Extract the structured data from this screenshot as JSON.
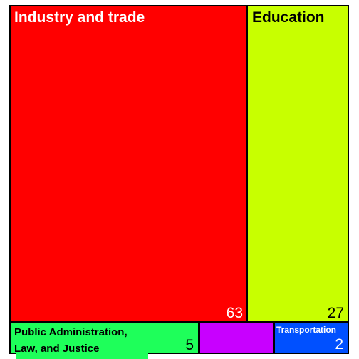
{
  "chart_data": {
    "type": "treemap",
    "tiles": [
      {
        "label": "Industry and trade",
        "value": 63,
        "color": "#ff0000",
        "text_color": "#ffffff"
      },
      {
        "label": "Education",
        "value": 27,
        "color": "#c8ff00",
        "text_color": "#000000"
      },
      {
        "label": "Public Administration, Law, and Justice",
        "value": 5,
        "color": "#1eff5a",
        "text_color": "#000000"
      },
      {
        "label": "",
        "value": null,
        "color": "#c800ff",
        "text_color": "#000000"
      },
      {
        "label": "Transportation",
        "value": 2,
        "color": "#0050ff",
        "text_color": "#ffffff"
      }
    ]
  }
}
